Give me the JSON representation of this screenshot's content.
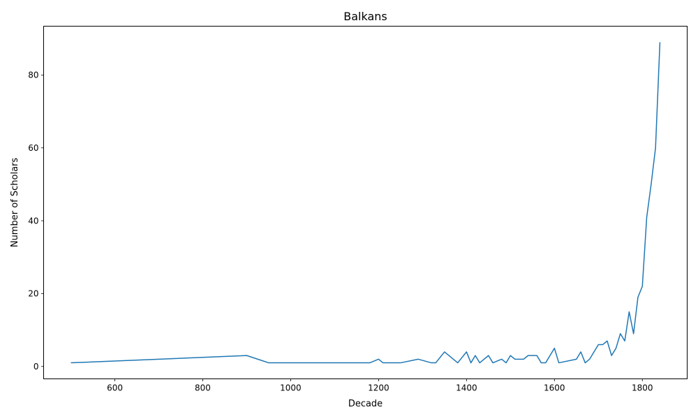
{
  "chart_data": {
    "type": "line",
    "title": "Balkans",
    "xlabel": "Decade",
    "ylabel": "Number of Scholars",
    "xlim": [
      438,
      1902
    ],
    "ylim": [
      -3.4,
      93.4
    ],
    "x_ticks": [
      600,
      800,
      1000,
      1200,
      1400,
      1600,
      1800
    ],
    "y_ticks": [
      0,
      20,
      40,
      60,
      80
    ],
    "grid": false,
    "line_color": "#1f77b4",
    "series": [
      {
        "x": [
          500,
          900,
          950,
          1180,
          1200,
          1210,
          1250,
          1290,
          1320,
          1330,
          1350,
          1380,
          1400,
          1410,
          1420,
          1430,
          1450,
          1460,
          1480,
          1490,
          1500,
          1510,
          1530,
          1540,
          1560,
          1570,
          1580,
          1600,
          1610,
          1650,
          1660,
          1670,
          1680,
          1700,
          1710,
          1720,
          1730,
          1740,
          1750,
          1760,
          1770,
          1780,
          1790,
          1800,
          1810,
          1820,
          1830,
          1840
        ],
        "y": [
          1,
          3,
          1,
          1,
          2,
          1,
          1,
          2,
          1,
          1,
          4,
          1,
          4,
          1,
          3,
          1,
          3,
          1,
          2,
          1,
          3,
          2,
          2,
          3,
          3,
          1,
          1,
          5,
          1,
          2,
          4,
          1,
          2,
          6,
          6,
          7,
          3,
          5,
          9,
          7,
          15,
          9,
          19,
          22,
          41,
          50,
          60,
          89
        ]
      }
    ]
  }
}
